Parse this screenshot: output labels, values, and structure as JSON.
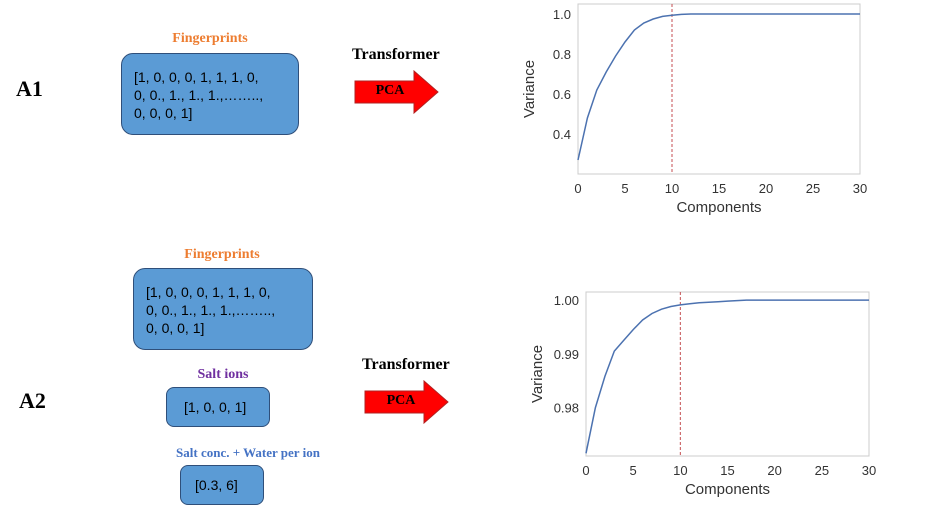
{
  "colors": {
    "box_fill": "#5b9bd5",
    "fingerprints_title": "#ed7d31",
    "salt_ions_title": "#7030a0",
    "salt_conc_title": "#4472c4",
    "arrow_fill": "#ff0000",
    "line": "#4c72b0",
    "threshold": "#c44e52"
  },
  "a1": {
    "label": "A1",
    "fingerprints_title": "Fingerprints",
    "fingerprint_lines": [
      "[1, 0, 0, 0, 1, 1, 1, 0,",
      "0, 0., 1., 1., 1.,……..,",
      "0, 0, 0, 1]"
    ],
    "transformer_label": "Transformer",
    "arrow_label": "PCA"
  },
  "a2": {
    "label": "A2",
    "fingerprints_title": "Fingerprints",
    "fingerprint_lines": [
      "[1, 0, 0, 0, 1, 1, 1, 0,",
      "0, 0., 1., 1., 1.,……..,",
      "0, 0, 0, 1]"
    ],
    "salt_ions_title": "Salt ions",
    "salt_ions_value": "[1, 0, 0, 1]",
    "salt_conc_title": "Salt conc. + Water per ion",
    "salt_conc_value": "[0.3, 6]",
    "transformer_label": "Transformer",
    "arrow_label": "PCA"
  },
  "chart_data": [
    {
      "type": "line",
      "xlabel": "Components",
      "ylabel": "Variance",
      "xlim": [
        0,
        30
      ],
      "ylim": [
        0.2,
        1.05
      ],
      "xticks": [
        0,
        5,
        10,
        15,
        20,
        25,
        30
      ],
      "yticks": [
        0.4,
        0.6,
        0.8,
        1.0
      ],
      "ytick_labels": [
        "0.4",
        "0.6",
        "0.8",
        "1.0"
      ],
      "threshold_x": 10,
      "grid": false,
      "x": [
        0,
        1,
        2,
        3,
        4,
        5,
        6,
        7,
        8,
        9,
        10,
        11,
        12,
        13,
        14,
        15,
        16,
        17,
        18,
        19,
        20,
        21,
        22,
        23,
        24,
        25,
        26,
        27,
        28,
        29,
        30
      ],
      "y": [
        0.27,
        0.48,
        0.62,
        0.71,
        0.79,
        0.86,
        0.92,
        0.955,
        0.975,
        0.988,
        0.994,
        0.998,
        1.0,
        1.0,
        1.0,
        1.0,
        1.0,
        1.0,
        1.0,
        1.0,
        1.0,
        1.0,
        1.0,
        1.0,
        1.0,
        1.0,
        1.0,
        1.0,
        1.0,
        1.0,
        1.0
      ]
    },
    {
      "type": "line",
      "xlabel": "Components",
      "ylabel": "Variance",
      "xlim": [
        0,
        30
      ],
      "ylim": [
        0.971,
        1.0015
      ],
      "xticks": [
        0,
        5,
        10,
        15,
        20,
        25,
        30
      ],
      "yticks": [
        0.98,
        0.99,
        1.0
      ],
      "ytick_labels": [
        "0.98",
        "0.99",
        "1.00"
      ],
      "threshold_x": 10,
      "grid": false,
      "x": [
        0,
        1,
        2,
        3,
        4,
        5,
        6,
        7,
        8,
        9,
        10,
        11,
        12,
        13,
        14,
        15,
        16,
        17,
        18,
        19,
        20,
        21,
        22,
        23,
        24,
        25,
        26,
        27,
        28,
        29,
        30
      ],
      "y": [
        0.9715,
        0.98,
        0.9858,
        0.9905,
        0.9925,
        0.9945,
        0.9963,
        0.9975,
        0.9983,
        0.9988,
        0.9991,
        0.9993,
        0.9995,
        0.9996,
        0.9997,
        0.9998,
        0.9999,
        1.0,
        1.0,
        1.0,
        1.0,
        1.0,
        1.0,
        1.0,
        1.0,
        1.0,
        1.0,
        1.0,
        1.0,
        1.0,
        1.0
      ]
    }
  ]
}
